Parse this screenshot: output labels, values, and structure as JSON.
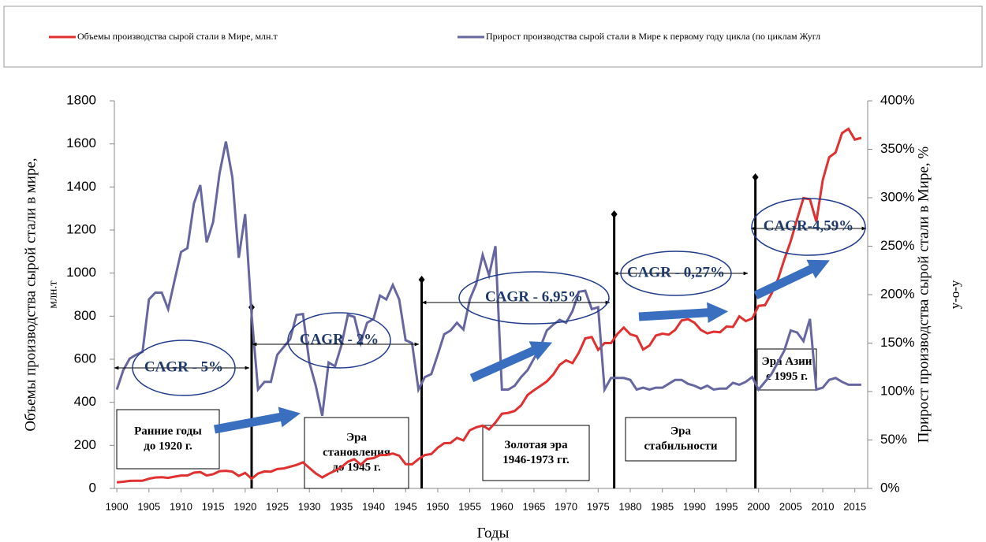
{
  "chart_data": {
    "type": "line",
    "legend": "top",
    "x_label": "Годы",
    "y_label": [
      "Объемы производства сырой стали в мире,",
      "млн.т"
    ],
    "y2_label": [
      "Прирост производства сырой стали в Мире, %",
      "у-о-у"
    ],
    "x": [
      1900,
      1901,
      1902,
      1903,
      1904,
      1905,
      1906,
      1907,
      1908,
      1909,
      1910,
      1911,
      1912,
      1913,
      1914,
      1915,
      1916,
      1917,
      1918,
      1919,
      1920,
      1921,
      1922,
      1923,
      1924,
      1925,
      1926,
      1927,
      1928,
      1929,
      1930,
      1931,
      1932,
      1933,
      1934,
      1935,
      1936,
      1937,
      1938,
      1939,
      1940,
      1941,
      1942,
      1943,
      1944,
      1945,
      1946,
      1947,
      1948,
      1949,
      1950,
      1951,
      1952,
      1953,
      1954,
      1955,
      1956,
      1957,
      1958,
      1959,
      1960,
      1961,
      1962,
      1963,
      1964,
      1965,
      1966,
      1967,
      1968,
      1969,
      1970,
      1971,
      1972,
      1973,
      1974,
      1975,
      1976,
      1977,
      1978,
      1979,
      1980,
      1981,
      1982,
      1983,
      1984,
      1985,
      1986,
      1987,
      1988,
      1989,
      1990,
      1991,
      1992,
      1993,
      1994,
      1995,
      1996,
      1997,
      1998,
      1999,
      2000,
      2001,
      2002,
      2003,
      2004,
      2005,
      2006,
      2007,
      2008,
      2009,
      2010,
      2011,
      2012,
      2013,
      2014,
      2015,
      2016
    ],
    "xlim": [
      1899,
      2017
    ],
    "xticks": [
      1900,
      1905,
      1910,
      1915,
      1920,
      1925,
      1930,
      1935,
      1940,
      1945,
      1950,
      1955,
      1960,
      1965,
      1970,
      1975,
      1980,
      1985,
      1990,
      1995,
      2000,
      2005,
      2010,
      2015
    ],
    "ylim": [
      0,
      1800
    ],
    "yticks": [
      0,
      200,
      400,
      600,
      800,
      1000,
      1200,
      1400,
      1600,
      1800
    ],
    "y2lim": [
      0,
      400
    ],
    "y2ticks": [
      {
        "value": 0,
        "label": "0%"
      },
      {
        "value": 50,
        "label": "50%"
      },
      {
        "value": 100,
        "label": "100%"
      },
      {
        "value": 150,
        "label": "150%"
      },
      {
        "value": 200,
        "label": "200%"
      },
      {
        "value": 250,
        "label": "250%"
      },
      {
        "value": 300,
        "label": "300%"
      },
      {
        "value": 350,
        "label": "350%"
      },
      {
        "value": 400,
        "label": "400%"
      }
    ],
    "series": [
      {
        "name": "Объемы производства сырой стали в Мире, млн.т",
        "color": "#e03030",
        "values": [
          28,
          31,
          35,
          36,
          36,
          45,
          51,
          52,
          49,
          55,
          60,
          60,
          73,
          76,
          60,
          66,
          80,
          82,
          78,
          58,
          72,
          45,
          69,
          79,
          78,
          90,
          93,
          101,
          109,
          121,
          95,
          70,
          51,
          68,
          82,
          99,
          124,
          136,
          110,
          137,
          141,
          155,
          155,
          162,
          152,
          113,
          112,
          136,
          155,
          160,
          189,
          210,
          211,
          235,
          223,
          270,
          284,
          292,
          274,
          306,
          347,
          351,
          360,
          386,
          434,
          456,
          476,
          497,
          529,
          574,
          595,
          582,
          631,
          697,
          703,
          643,
          675,
          675,
          717,
          747,
          716,
          707,
          645,
          664,
          710,
          719,
          714,
          736,
          780,
          786,
          770,
          736,
          720,
          728,
          725,
          752,
          750,
          799,
          777,
          789,
          848,
          851,
          904,
          970,
          1062,
          1148,
          1250,
          1348,
          1343,
          1239,
          1433,
          1538,
          1560,
          1650,
          1670,
          1620,
          1628
        ]
      },
      {
        "name": "Прирост производства сырой стали в Мире к первому году цикла (по циклам Жугл",
        "color": "#6666a0",
        "axis": "y2",
        "values": [
          102,
          122,
          134,
          138,
          141,
          195,
          202,
          202,
          185,
          215,
          244,
          248,
          294,
          313,
          254,
          275,
          325,
          358,
          321,
          238,
          283,
          179,
          102,
          110,
          110,
          138,
          146,
          154,
          179,
          180,
          130,
          106,
          75,
          130,
          126,
          148,
          179,
          177,
          150,
          171,
          175,
          199,
          195,
          210,
          195,
          153,
          150,
          102,
          115,
          118,
          138,
          159,
          163,
          171,
          164,
          195,
          211,
          241,
          220,
          250,
          102,
          102,
          106,
          115,
          122,
          134,
          146,
          163,
          169,
          174,
          171,
          183,
          203,
          204,
          185,
          187,
          102,
          114,
          114,
          114,
          112,
          102,
          104,
          102,
          104,
          104,
          108,
          112,
          112,
          108,
          106,
          103,
          106,
          102,
          103,
          103,
          109,
          107,
          110,
          115,
          102,
          110,
          118,
          130,
          142,
          163,
          161,
          152,
          175,
          102,
          104,
          112,
          114,
          110,
          107,
          107,
          107
        ]
      }
    ],
    "annotations": {
      "cagr": [
        "CAGR - 5%",
        "CAGR - 2%",
        "CAGR - 6,95%",
        "CAGR - 0,27%",
        "CAGR-4,59%"
      ],
      "eras": [
        [
          "Ранние годы",
          "до 1920 г."
        ],
        [
          "Эра",
          "становления",
          "до 1945 г."
        ],
        [
          "Золотая эра",
          "1946-1973 гг."
        ],
        [
          "Эра",
          "стабильности"
        ],
        [
          "Эра Азии",
          "с 1995 г."
        ]
      ]
    }
  }
}
